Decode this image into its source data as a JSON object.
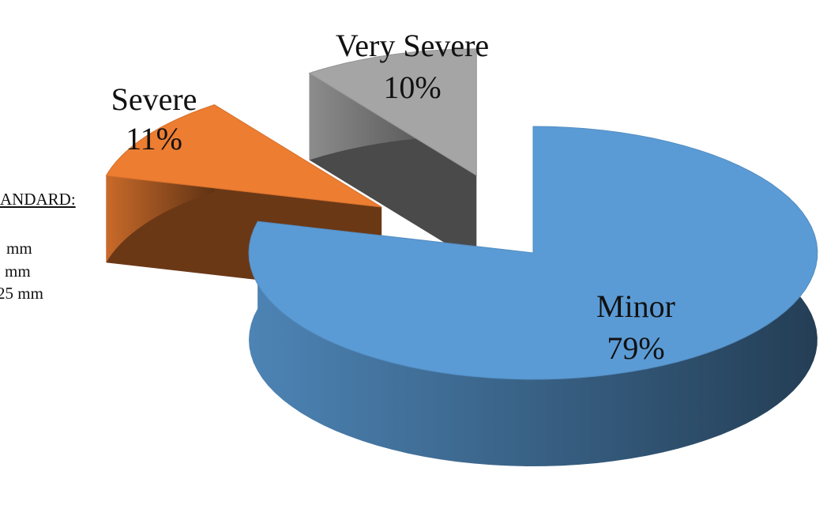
{
  "chart_data": {
    "type": "pie",
    "categories": [
      "Minor",
      "Severe",
      "Very Severe"
    ],
    "values": [
      79,
      11,
      10
    ],
    "value_labels": [
      "79%",
      "11%",
      "10%"
    ],
    "colors": [
      "#5b9bd5",
      "#ed7d31",
      "#a5a5a5"
    ],
    "exploded": [
      false,
      true,
      true
    ],
    "annotations": [
      "ANDARD:",
      "mm",
      "mm",
      "25 mm"
    ]
  }
}
